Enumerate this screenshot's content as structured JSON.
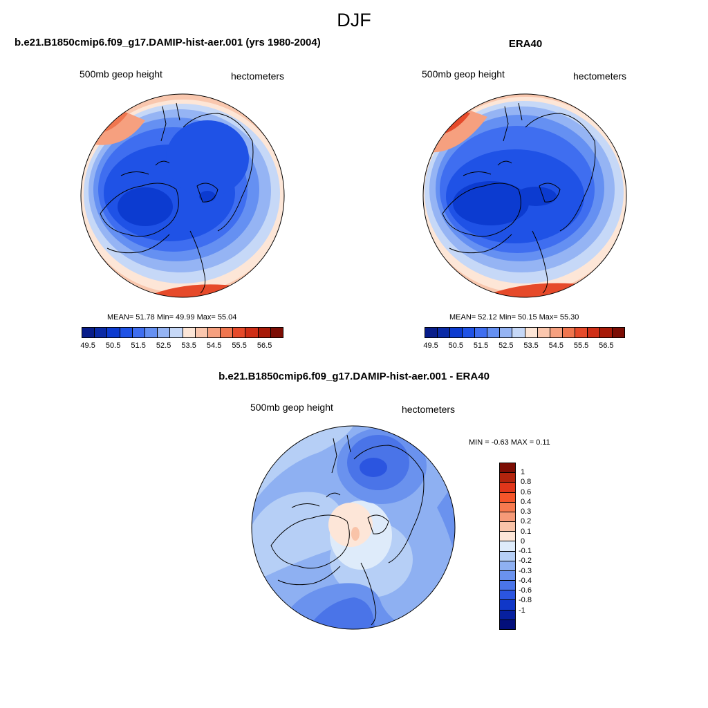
{
  "season": "DJF",
  "panels": {
    "model": {
      "title": "b.e21.B1850cmip6.f09_g17.DAMIP-hist-aer.001 (yrs 1980-2004)",
      "left_label": "500mb geop height",
      "right_label": "hectometers",
      "stats": "MEAN=  51.78  Min=  49.99  Max=  55.04"
    },
    "obs": {
      "title": "ERA40",
      "left_label": "500mb geop height",
      "right_label": "hectometers",
      "stats": "MEAN=  52.12  Min=  50.15  Max=  55.30"
    },
    "diff": {
      "title": "b.e21.B1850cmip6.f09_g17.DAMIP-hist-aer.001 - ERA40",
      "left_label": "500mb geop height",
      "right_label": "hectometers",
      "stats": "MIN =  -0.63 MAX =   0.11"
    }
  },
  "colorbar_main": {
    "colors": [
      "#081d8a",
      "#0a2aa6",
      "#0c3bd0",
      "#1f52e6",
      "#3f6ef0",
      "#6590f2",
      "#95b4f4",
      "#c6d8f7",
      "#fde6d7",
      "#fbc7ae",
      "#f6a07f",
      "#f0764f",
      "#e64a2a",
      "#cf2e16",
      "#a81a08",
      "#7c0d04"
    ],
    "labels": [
      "49.5",
      "50.5",
      "51.5",
      "52.5",
      "53.5",
      "54.5",
      "55.5",
      "56.5"
    ]
  },
  "colorbar_diff": {
    "colors": [
      "#7c0d04",
      "#b2240d",
      "#e0361a",
      "#f5552a",
      "#f77a4f",
      "#f69a78",
      "#f9c3a8",
      "#fde6d8",
      "#deebfa",
      "#b6cff6",
      "#8eb0f2",
      "#6a92ee",
      "#4a74e8",
      "#2b55e0",
      "#1037c8",
      "#07209f",
      "#030f7a"
    ],
    "labels": [
      "1",
      "0.8",
      "0.6",
      "0.4",
      "0.3",
      "0.2",
      "0.1",
      "0",
      "-0.1",
      "-0.2",
      "-0.3",
      "-0.4",
      "-0.6",
      "-0.8",
      "-1"
    ]
  }
}
